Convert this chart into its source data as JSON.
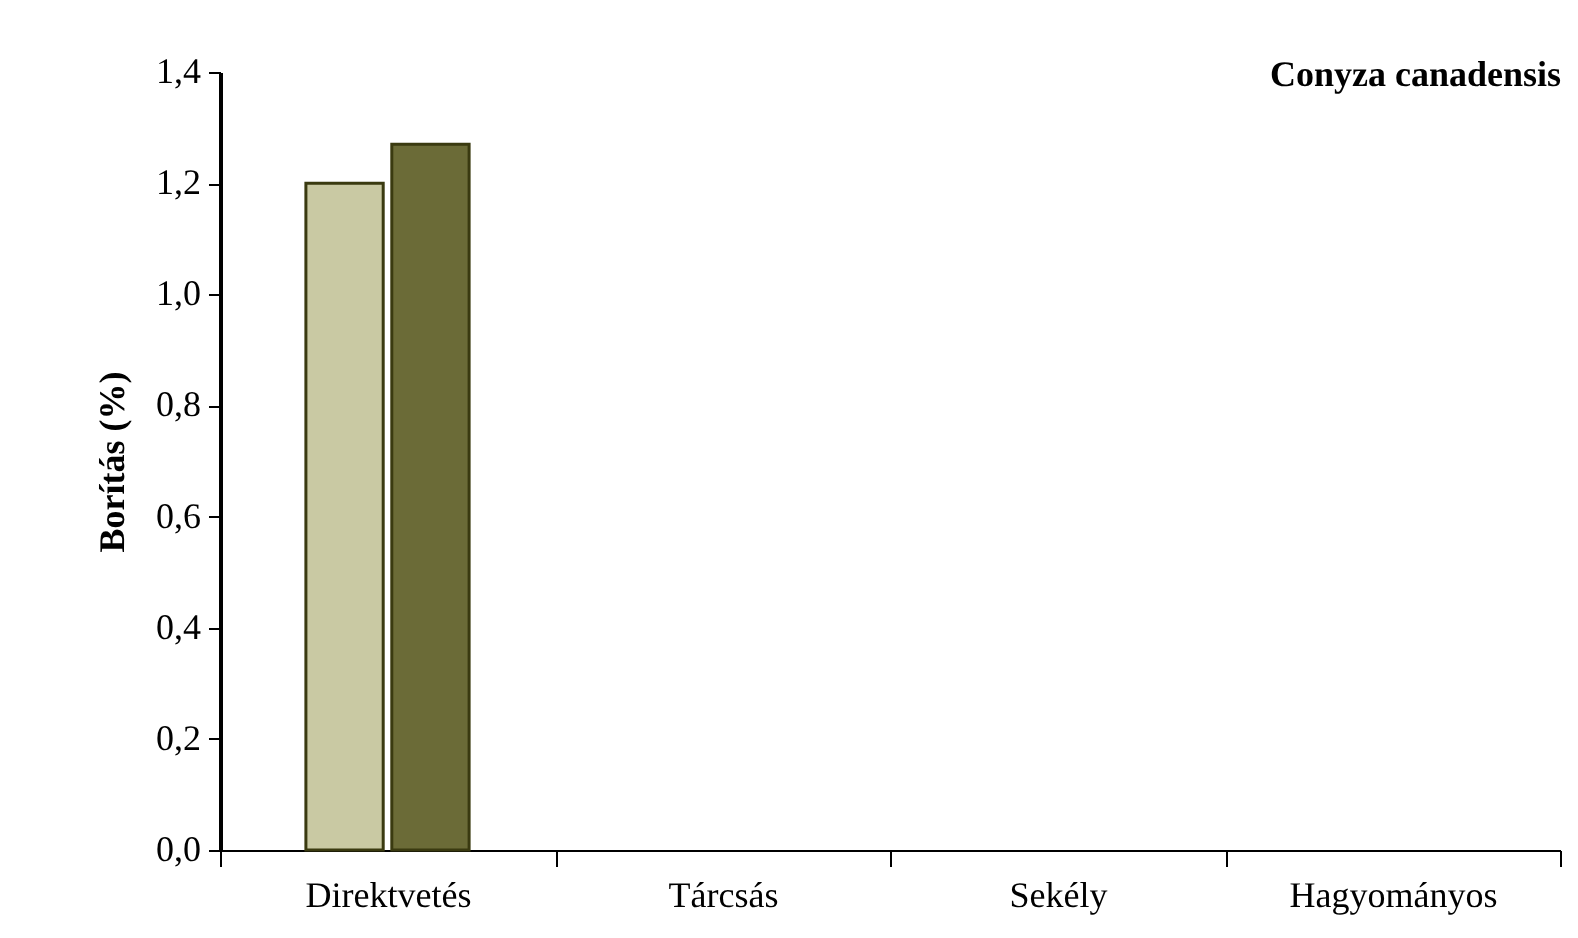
{
  "chart_data": {
    "type": "bar",
    "title": "Conyza canadensis",
    "ylabel": "Borítás (%)",
    "categories": [
      "Direktvetés",
      "Tárcsás",
      "Sekély",
      "Hagyományos"
    ],
    "series": [
      {
        "color": "#c9c9a3",
        "values": [
          1.2,
          0,
          0,
          0
        ]
      },
      {
        "color": "#6b6b37",
        "values": [
          1.27,
          0,
          0,
          0
        ]
      }
    ],
    "ylim": [
      0,
      1.4
    ],
    "yticks": [
      {
        "value": 0,
        "label": "0,0"
      },
      {
        "value": 0.2,
        "label": "0,2"
      },
      {
        "value": 0.4,
        "label": "0,4"
      },
      {
        "value": 0.6,
        "label": "0,6"
      },
      {
        "value": 0.8,
        "label": "0,8"
      },
      {
        "value": 1,
        "label": "1,0"
      },
      {
        "value": 1.2,
        "label": "1,2"
      },
      {
        "value": 1.4,
        "label": "1,4"
      }
    ],
    "grid": false,
    "legend": false
  }
}
